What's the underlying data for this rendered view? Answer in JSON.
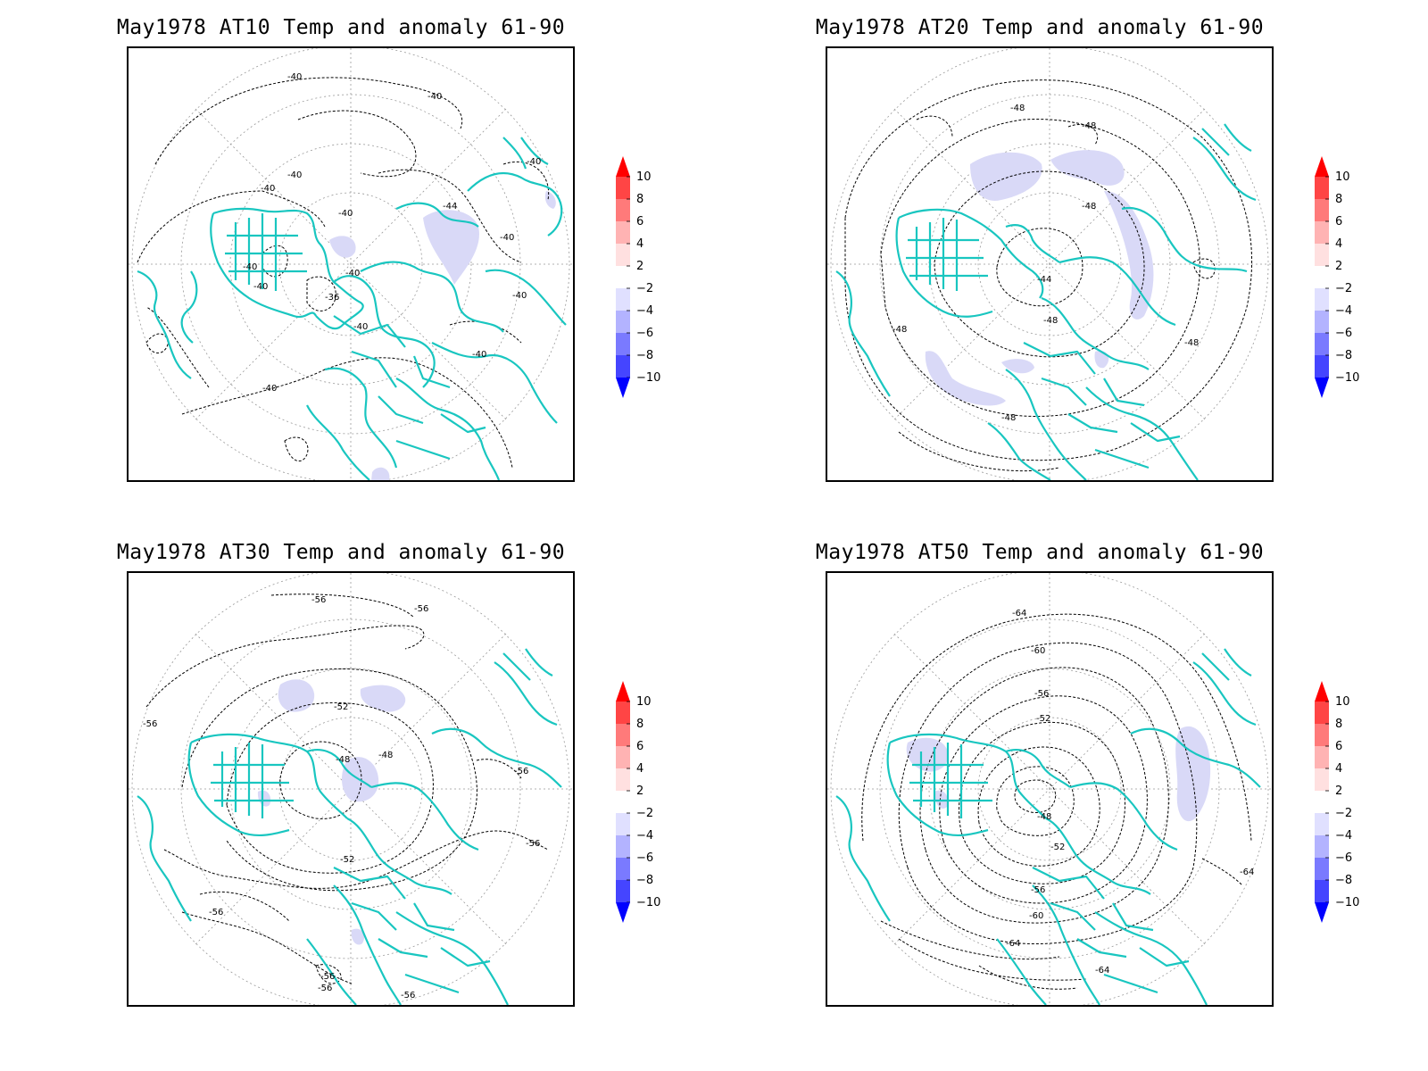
{
  "colors": {
    "coastline": "#19c6c0",
    "contour": "#000000",
    "grid": "#999999",
    "anomaly_negative": "#d9d9f7",
    "anomaly_positive": "#fcdede"
  },
  "colorbar": {
    "levels": [
      "10",
      "8",
      "6",
      "4",
      "2",
      "−2",
      "−4",
      "−6",
      "−8",
      "−10"
    ],
    "colors": [
      "#ff0000",
      "#ff4545",
      "#ff7a7a",
      "#ffb3b3",
      "#ffe0e0",
      "#ffffff",
      "#e0e0ff",
      "#b3b3ff",
      "#7a7aff",
      "#4545ff",
      "#0000ff"
    ]
  },
  "panels": [
    {
      "title": "May1978 AT10 Temp and anomaly 61-90",
      "contour_labels": [
        "-40",
        "-40",
        "-40",
        "-40",
        "-44",
        "-40",
        "-40",
        "-36",
        "-40",
        "-40",
        "-40",
        "-40",
        "-40",
        "-40",
        "-40",
        "-40"
      ]
    },
    {
      "title": "May1978 AT20 Temp and anomaly 61-90",
      "contour_labels": [
        "-48",
        "-48",
        "-48",
        "-44",
        "-48",
        "-48",
        "-48",
        "-48"
      ]
    },
    {
      "title": "May1978 AT30 Temp and anomaly 61-90",
      "contour_labels": [
        "-56",
        "-56",
        "-56",
        "-52",
        "-48",
        "-48",
        "-52",
        "-56",
        "-56",
        "-56",
        "-56",
        "-56",
        "-56"
      ]
    },
    {
      "title": "May1978 AT50 Temp and anomaly 61-90",
      "contour_labels": [
        "-64",
        "-60",
        "-56",
        "-52",
        "-48",
        "-52",
        "-56",
        "-60",
        "-64",
        "-64",
        "-64"
      ]
    }
  ]
}
